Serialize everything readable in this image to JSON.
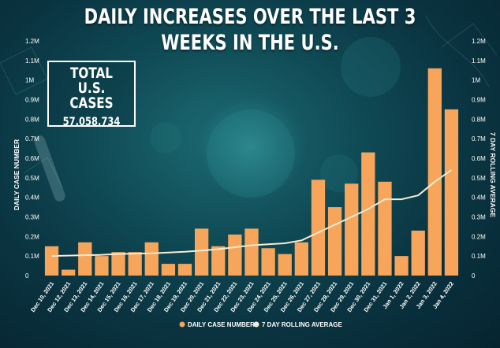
{
  "title": {
    "line1": "DAILY INCREASES OVER THE LAST 3",
    "line2": "WEEKS IN THE U.S."
  },
  "total_box": {
    "label": "TOTAL U.S. CASES",
    "value": "57,058,734"
  },
  "colors": {
    "bar": "#f6a55a",
    "line": "#f4ecd6",
    "text": "#ffffff"
  },
  "chart_data": {
    "type": "bar",
    "title": "DAILY INCREASES OVER THE LAST 3 WEEKS IN THE U.S.",
    "ylabel": "DAILY CASE NUMBER",
    "y2label": "7 DAY ROLLING AVERAGE",
    "ylim": [
      0,
      1200000
    ],
    "yticks": [
      0,
      100000,
      200000,
      300000,
      400000,
      500000,
      600000,
      700000,
      800000,
      900000,
      1000000,
      1100000,
      1200000
    ],
    "ytick_labels": [
      "0",
      "0.1M",
      "0.2M",
      "0.3M",
      "0.4M",
      "0.5M",
      "0.6M",
      "0.7M",
      "0.8M",
      "0.9M",
      "1M",
      "1.1M",
      "1.2M"
    ],
    "categories": [
      "Dec 10, 2021",
      "Dec 12, 2021",
      "Dec 13, 2021",
      "Dec 14, 2021",
      "Dec 15, 2021",
      "Dec 16, 2021",
      "Dec 17, 2021",
      "Dec 18, 2021",
      "Dec 19, 2021",
      "Dec 20, 2021",
      "Dec 21, 2021",
      "Dec 22, 2021",
      "Dec 23, 2021",
      "Dec 24, 2021",
      "Dec 25, 2021",
      "Dec 26, 2021",
      "Dec 27, 2021",
      "Dec 28, 2021",
      "Dec 29, 2021",
      "Dec 30, 2021",
      "Dec 31, 2021",
      "Jan 1, 2022",
      "Jan 2, 2022",
      "Jan 3, 2022",
      "Jan 4, 2022"
    ],
    "series": [
      {
        "name": "DAILY CASE NUMBER",
        "kind": "bar",
        "values": [
          150000,
          30000,
          170000,
          100000,
          120000,
          120000,
          170000,
          60000,
          60000,
          240000,
          150000,
          210000,
          240000,
          140000,
          110000,
          170000,
          490000,
          350000,
          470000,
          630000,
          480000,
          100000,
          230000,
          1060000,
          850000
        ]
      },
      {
        "name": "7 DAY ROLLING AVERAGE",
        "kind": "line",
        "values": [
          100000,
          102000,
          104000,
          106000,
          110000,
          112000,
          114000,
          118000,
          122000,
          128000,
          135000,
          145000,
          155000,
          160000,
          165000,
          180000,
          220000,
          260000,
          300000,
          340000,
          390000,
          390000,
          410000,
          480000,
          540000
        ]
      }
    ],
    "legend": [
      "DAILY CASE NUMBER",
      "7 DAY ROLLING AVERAGE"
    ],
    "legend_position": "bottom-center",
    "grid": false
  }
}
